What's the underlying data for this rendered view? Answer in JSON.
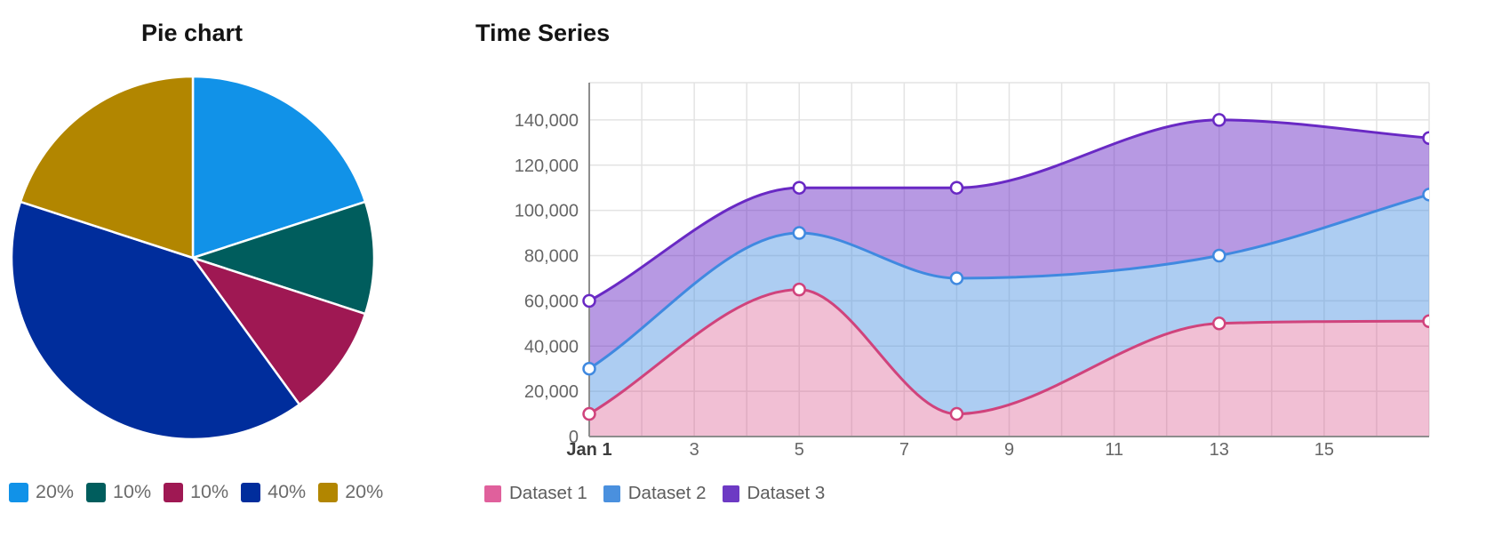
{
  "chart_data": [
    {
      "type": "pie",
      "title": "Pie chart",
      "labels": [
        "20%",
        "10%",
        "10%",
        "40%",
        "20%"
      ],
      "values": [
        20,
        10,
        10,
        40,
        20
      ],
      "colors": [
        "#1192e8",
        "#005d5d",
        "#9f1853",
        "#002d9c",
        "#b28600"
      ],
      "start_angle_deg": 0,
      "direction": "clockwise",
      "slice_border_color": "#ffffff",
      "legend_position": "bottom"
    },
    {
      "type": "area",
      "title": "Time Series",
      "x": [
        1,
        5,
        8,
        13,
        17
      ],
      "xlim": [
        1,
        17
      ],
      "ylim": [
        0,
        156000
      ],
      "x_ticks": [
        {
          "label": "Jan 1",
          "x": 1,
          "bold": true
        },
        {
          "label": "3",
          "x": 3
        },
        {
          "label": "5",
          "x": 5
        },
        {
          "label": "7",
          "x": 7
        },
        {
          "label": "9",
          "x": 9
        },
        {
          "label": "11",
          "x": 11
        },
        {
          "label": "13",
          "x": 13
        },
        {
          "label": "15",
          "x": 15
        }
      ],
      "y_ticks": [
        {
          "label": "0",
          "value": 0
        },
        {
          "label": "20,000",
          "value": 20000
        },
        {
          "label": "40,000",
          "value": 40000
        },
        {
          "label": "60,000",
          "value": 60000
        },
        {
          "label": "80,000",
          "value": 80000
        },
        {
          "label": "100,000",
          "value": 100000
        },
        {
          "label": "120,000",
          "value": 120000
        },
        {
          "label": "140,000",
          "value": 140000
        }
      ],
      "grid": true,
      "curve": "monotone",
      "point_style": "white-filled-circle",
      "legend_position": "bottom",
      "series": [
        {
          "name": "Dataset 1",
          "values": [
            10000,
            65000,
            10000,
            50000,
            51000
          ],
          "line_color": "#d0437c",
          "fill_color": "rgba(214,71,133,0.35)",
          "legend_color": "#e0609c"
        },
        {
          "name": "Dataset 2",
          "values": [
            30000,
            90000,
            70000,
            80000,
            107000
          ],
          "line_color": "#4089e0",
          "fill_color": "rgba(74,144,226,0.45)",
          "legend_color": "#4a90de"
        },
        {
          "name": "Dataset 3",
          "values": [
            60000,
            110000,
            110000,
            140000,
            132000
          ],
          "line_color": "#6929c4",
          "fill_color": "rgba(105,41,196,0.48)",
          "legend_color": "#6d3ac4"
        }
      ]
    }
  ]
}
